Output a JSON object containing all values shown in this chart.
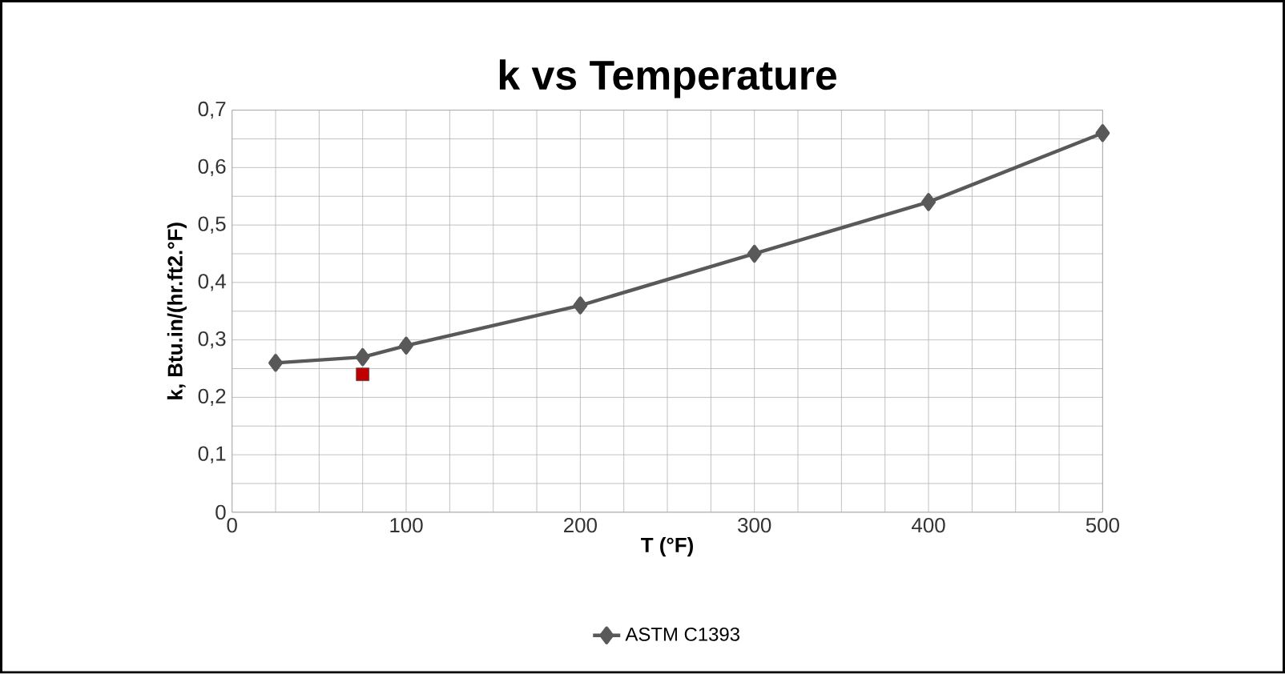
{
  "chart_data": {
    "type": "line",
    "title": "k vs Temperature",
    "xlabel": "T (°F)",
    "ylabel": "k, Btu.in/(hr.ft2.°F)",
    "xlim": [
      0,
      500
    ],
    "xticks": [
      0,
      100,
      200,
      300,
      400,
      500
    ],
    "ylim": [
      0,
      0.7
    ],
    "yticks": [
      {
        "value": 0,
        "label": "0"
      },
      {
        "value": 0.1,
        "label": "0,1"
      },
      {
        "value": 0.2,
        "label": "0,2"
      },
      {
        "value": 0.3,
        "label": "0,3"
      },
      {
        "value": 0.4,
        "label": "0,4"
      },
      {
        "value": 0.5,
        "label": "0,5"
      },
      {
        "value": 0.6,
        "label": "0,6"
      },
      {
        "value": 0.7,
        "label": "0,7"
      }
    ],
    "grid": true,
    "legend": "bottom",
    "series": [
      {
        "name": "ASTM C1393",
        "marker": "diamond",
        "color": "#595959",
        "x": [
          25,
          75,
          100,
          200,
          300,
          400,
          500
        ],
        "values": [
          0.26,
          0.27,
          0.29,
          0.36,
          0.45,
          0.54,
          0.66
        ]
      },
      {
        "type": "scatter",
        "marker": "square",
        "color": "#c00000",
        "x": [
          75
        ],
        "values": [
          0.24
        ]
      }
    ]
  }
}
